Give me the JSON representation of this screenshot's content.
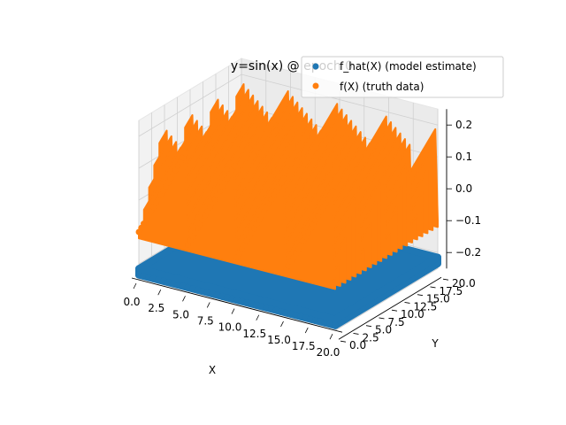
{
  "chart_data": {
    "type": "scatter",
    "projection": "3d",
    "title": "y=sin(x) @ epoch 0",
    "xlabel": "X",
    "ylabel": "Y",
    "zlabel": "",
    "xlim": [
      0,
      20
    ],
    "ylim": [
      0,
      20
    ],
    "zlim": [
      -0.25,
      0.25
    ],
    "x_ticks": [
      "0.0",
      "2.5",
      "5.0",
      "7.5",
      "10.0",
      "12.5",
      "15.0",
      "17.5",
      "20.0"
    ],
    "y_ticks": [
      "0.0",
      "2.5",
      "5.0",
      "7.5",
      "10.0",
      "12.5",
      "15.0",
      "17.5",
      "20.0"
    ],
    "z_ticks": [
      "−0.2",
      "−0.1",
      "0.0",
      "0.1",
      "0.2"
    ],
    "grid": true,
    "legend_position": "top-right",
    "series": [
      {
        "name": "f_hat(X) (model estimate)",
        "color": "#1f77b4",
        "marker": "circle",
        "surface": "flat",
        "z_range": [
          -0.235,
          -0.215
        ]
      },
      {
        "name": "f(X) (truth data)",
        "color": "#ff7f0e",
        "marker": "circle",
        "surface": "sawtooth",
        "z_range": [
          -0.1,
          0.2
        ],
        "sawtooth_period": 5
      }
    ]
  }
}
